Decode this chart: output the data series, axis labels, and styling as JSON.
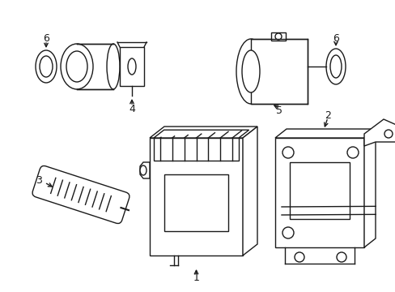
{
  "bg_color": "#ffffff",
  "line_color": "#1a1a1a",
  "lw": 1.0,
  "fig_width": 4.89,
  "fig_height": 3.6,
  "dpi": 100
}
